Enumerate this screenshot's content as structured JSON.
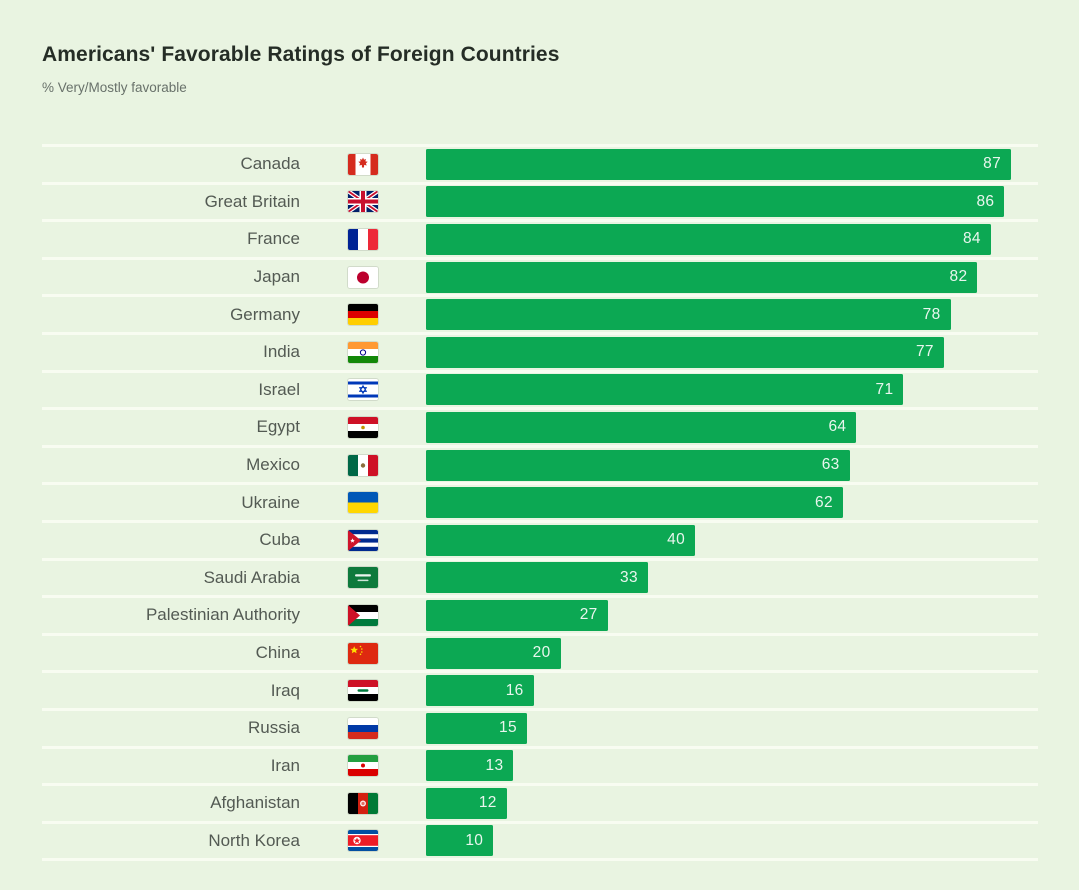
{
  "chart_data": {
    "type": "bar",
    "orientation": "horizontal",
    "title": "Americans' Favorable Ratings of Foreign Countries",
    "subtitle": "% Very/Mostly favorable",
    "value_unit": "%",
    "xlim": [
      0,
      100
    ],
    "grid": false,
    "legend": "none",
    "value_labels_position": "inside-end",
    "bar_color": "#0ca853",
    "value_label_color": "#e9f6ee",
    "background_color": "#e9f4e1",
    "row_divider_color": "#f8fcf1",
    "categories": [
      "Canada",
      "Great Britain",
      "France",
      "Japan",
      "Germany",
      "India",
      "Israel",
      "Egypt",
      "Mexico",
      "Ukraine",
      "Cuba",
      "Saudi Arabia",
      "Palestinian Authority",
      "China",
      "Iraq",
      "Russia",
      "Iran",
      "Afghanistan",
      "North Korea"
    ],
    "values": [
      87,
      86,
      84,
      82,
      78,
      77,
      71,
      64,
      63,
      62,
      40,
      33,
      27,
      20,
      16,
      15,
      13,
      12,
      10
    ],
    "flags": [
      "canada",
      "great-britain",
      "france",
      "japan",
      "germany",
      "india",
      "israel",
      "egypt",
      "mexico",
      "ukraine",
      "cuba",
      "saudi-arabia",
      "palestinian-authority",
      "china",
      "iraq",
      "russia",
      "iran",
      "afghanistan",
      "north-korea"
    ]
  }
}
